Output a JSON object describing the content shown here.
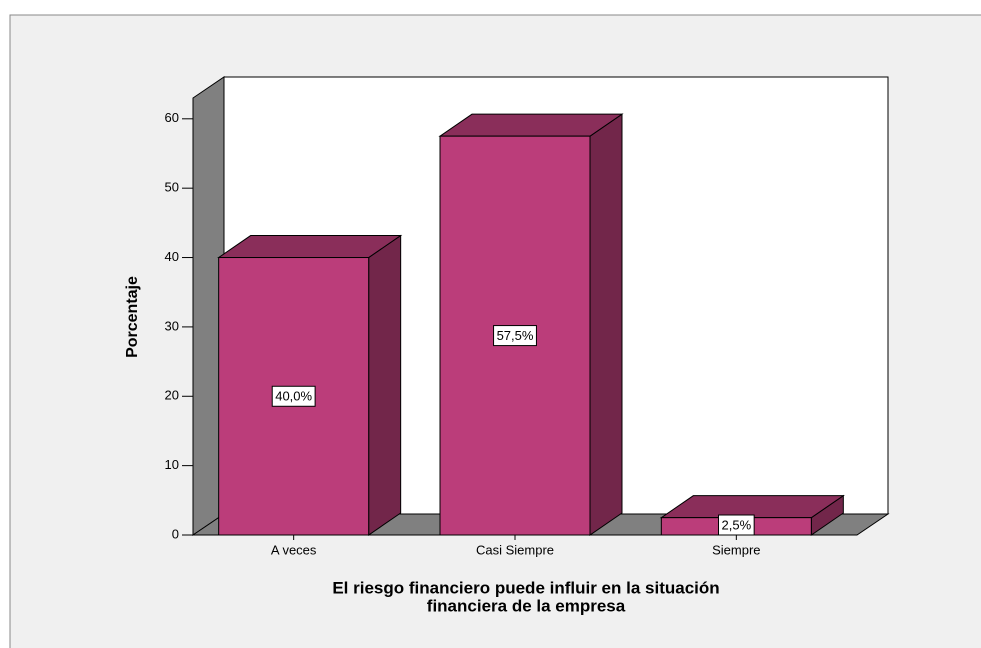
{
  "chart_data": {
    "type": "bar3d",
    "xlabel": [
      "El riesgo financiero puede influir en la situación",
      "financiera de la empresa"
    ],
    "ylabel": "Porcentaje",
    "categories": [
      "A veces",
      "Casi Siempre",
      "Siempre"
    ],
    "values": [
      40,
      57.5,
      2.5
    ],
    "value_labels": [
      "40,0%",
      "57,5%",
      "2,5%"
    ],
    "color": "#bb3d7a",
    "ylim": [
      0,
      63
    ],
    "yticks": [
      0,
      10,
      20,
      30,
      40,
      50,
      60
    ]
  }
}
